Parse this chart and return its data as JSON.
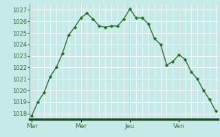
{
  "title": "",
  "background_color": "#c5eae7",
  "plot_bg_color": "#c5eae7",
  "grid_color": "#ffffff",
  "line_color": "#2a6e2a",
  "marker_color": "#2a6e2a",
  "ylim": [
    1017.5,
    1027.5
  ],
  "yticks": [
    1018,
    1019,
    1020,
    1021,
    1022,
    1023,
    1024,
    1025,
    1026,
    1027
  ],
  "day_labels": [
    "Mar",
    "Mer",
    "Jeu",
    "Ven"
  ],
  "day_positions": [
    0,
    24,
    48,
    72
  ],
  "x_values": [
    0,
    3,
    6,
    9,
    12,
    15,
    18,
    21,
    24,
    27,
    30,
    33,
    36,
    39,
    42,
    45,
    48,
    51,
    54,
    57,
    60,
    63,
    66,
    69,
    72,
    75,
    78,
    81,
    84,
    87,
    90
  ],
  "y_values": [
    1017.8,
    1019.0,
    1019.8,
    1021.2,
    1022.0,
    1023.2,
    1024.8,
    1025.5,
    1026.3,
    1026.7,
    1026.2,
    1025.6,
    1025.5,
    1025.6,
    1025.6,
    1026.2,
    1027.1,
    1026.3,
    1026.3,
    1025.8,
    1024.5,
    1024.0,
    1022.2,
    1022.5,
    1023.1,
    1022.7,
    1021.6,
    1021.0,
    1020.0,
    1019.2,
    1018.2
  ],
  "vline_color": "#6aaaaa",
  "bottom_bar_color": "#1a4a1a",
  "tick_label_color": "#3a6a3a"
}
